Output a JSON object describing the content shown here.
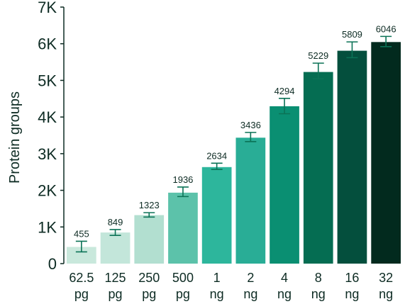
{
  "chart_data": {
    "type": "bar",
    "title": "",
    "xlabel": "",
    "ylabel": "Protein groups",
    "ylim": [
      0,
      7000
    ],
    "yticks": [
      0,
      1000,
      2000,
      3000,
      4000,
      5000,
      6000,
      7000
    ],
    "ytick_labels": [
      "0",
      "1K",
      "2K",
      "3K",
      "4K",
      "5K",
      "6K",
      "7K"
    ],
    "categories": [
      [
        "62.5",
        "pg"
      ],
      [
        "125",
        "pg"
      ],
      [
        "250",
        "pg"
      ],
      [
        "500",
        "pg"
      ],
      [
        "1",
        "ng"
      ],
      [
        "2",
        "ng"
      ],
      [
        "4",
        "ng"
      ],
      [
        "8",
        "ng"
      ],
      [
        "16",
        "ng"
      ],
      [
        "32",
        "ng"
      ]
    ],
    "values": [
      455,
      849,
      1323,
      1936,
      2634,
      3436,
      4294,
      5229,
      5809,
      6046
    ],
    "data_labels": [
      "455",
      "849",
      "1323",
      "1936",
      "2634",
      "3436",
      "4294",
      "5229",
      "5809",
      "6046"
    ],
    "error_low": [
      320,
      770,
      1270,
      1830,
      2570,
      3330,
      4090,
      5040,
      5620,
      5920
    ],
    "error_high": [
      610,
      930,
      1390,
      2090,
      2740,
      3580,
      4510,
      5470,
      6050,
      6200
    ],
    "colors": [
      "#c9e8dc",
      "#c3e6da",
      "#b2dfd0",
      "#5cc2aa",
      "#2db69c",
      "#29ad96",
      "#0a8f72",
      "#056d52",
      "#044f3d",
      "#022a1e"
    ],
    "error_bar_color": "#0b7256",
    "axis_color": "#0d2b23",
    "grid": false,
    "legend": false
  }
}
